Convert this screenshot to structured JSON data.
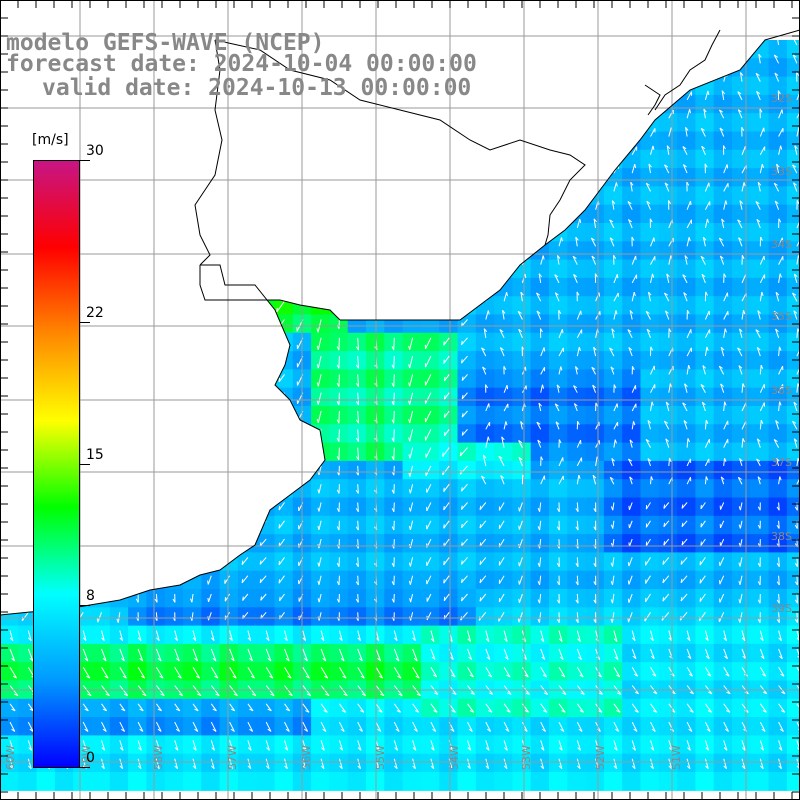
{
  "titles": {
    "line1": "modelo GEFS-WAVE (NCEP)",
    "line2": "forecast date: 2024-10-04 00:00:00",
    "line3": "valid date: 2024-10-13 00:00:00"
  },
  "colorbar": {
    "unit": "[m/s]",
    "min": 0,
    "max": 30,
    "tick_labels": [
      "30",
      "22",
      "15",
      "8",
      "0"
    ],
    "tick_values": [
      30,
      22,
      15,
      8,
      0
    ],
    "colors": [
      "#0000ff",
      "#0099ff",
      "#00ffff",
      "#00ff00",
      "#ffff00",
      "#ff8800",
      "#ff0000",
      "#c71585"
    ]
  },
  "map": {
    "lat_labels": [
      "32S",
      "33S",
      "34S",
      "35S",
      "36S",
      "37S",
      "38S",
      "39S"
    ],
    "lon_labels": [
      "60W",
      "59W",
      "58W",
      "57W",
      "56W",
      "55W",
      "54W",
      "53W",
      "52W",
      "51W"
    ],
    "land_color": "#ffffff",
    "grid_color": "#9a9a9a",
    "arrow_color": "#ffffff"
  }
}
